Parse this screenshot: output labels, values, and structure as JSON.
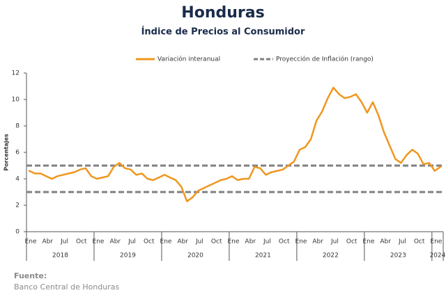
{
  "chart_data": {
    "type": "line",
    "title": "Honduras",
    "subtitle": "Índice de Precios al Consumidor",
    "y_label": "Porcentajes",
    "categories": [
      "Ene",
      null,
      null,
      "Abr",
      null,
      null,
      "Jul",
      null,
      null,
      "Oct",
      null,
      null,
      "Ene",
      null,
      null,
      "Abr",
      null,
      null,
      "Jul",
      null,
      null,
      "Oct",
      null,
      null,
      "Ene",
      null,
      null,
      "Abr",
      null,
      null,
      "Jul",
      null,
      null,
      "Oct",
      null,
      null,
      "Ene",
      null,
      null,
      "Abr",
      null,
      null,
      "Jul",
      null,
      null,
      "Oct",
      null,
      null,
      "Ene",
      null,
      null,
      "Abr",
      null,
      null,
      "Jul",
      null,
      null,
      "Oct",
      null,
      null,
      "Ene",
      null,
      null,
      "Abr",
      null,
      null,
      "Jul",
      null,
      null,
      "Oct",
      null,
      null,
      "Ene",
      null
    ],
    "year_groups": [
      {
        "label": "2018",
        "count": 12
      },
      {
        "label": "2019",
        "count": 12
      },
      {
        "label": "2020",
        "count": 12
      },
      {
        "label": "2021",
        "count": 12
      },
      {
        "label": "2022",
        "count": 12
      },
      {
        "label": "2023",
        "count": 12
      },
      {
        "label": "2024",
        "count": 2
      }
    ],
    "series": [
      {
        "name": "Variación interanual",
        "color": "#f0961e",
        "values": [
          4.6,
          4.4,
          4.4,
          4.2,
          4.0,
          4.2,
          4.3,
          4.4,
          4.5,
          4.7,
          4.8,
          4.2,
          4.0,
          4.1,
          4.2,
          4.9,
          5.2,
          4.8,
          4.7,
          4.3,
          4.4,
          4.0,
          3.9,
          4.1,
          4.3,
          4.1,
          3.9,
          3.4,
          2.3,
          2.6,
          3.1,
          3.3,
          3.5,
          3.7,
          3.9,
          4.0,
          4.2,
          3.9,
          4.0,
          4.0,
          4.9,
          4.8,
          4.3,
          4.5,
          4.6,
          4.7,
          5.0,
          5.3,
          6.2,
          6.4,
          7.0,
          8.4,
          9.1,
          10.1,
          10.9,
          10.4,
          10.1,
          10.2,
          10.4,
          9.8,
          9.0,
          9.8,
          8.8,
          7.5,
          6.5,
          5.5,
          5.2,
          5.8,
          6.2,
          5.9,
          5.1,
          5.2,
          4.6,
          4.9
        ]
      }
    ],
    "reference_lines": {
      "name": "Proyección de Inflación (rango)",
      "color": "#808080",
      "values": [
        3,
        5
      ]
    },
    "ylim": [
      0,
      12
    ],
    "yticks": [
      0,
      2,
      4,
      6,
      8,
      10,
      12
    ],
    "source_label": "Fuente:",
    "source": "Banco Central de Honduras"
  }
}
